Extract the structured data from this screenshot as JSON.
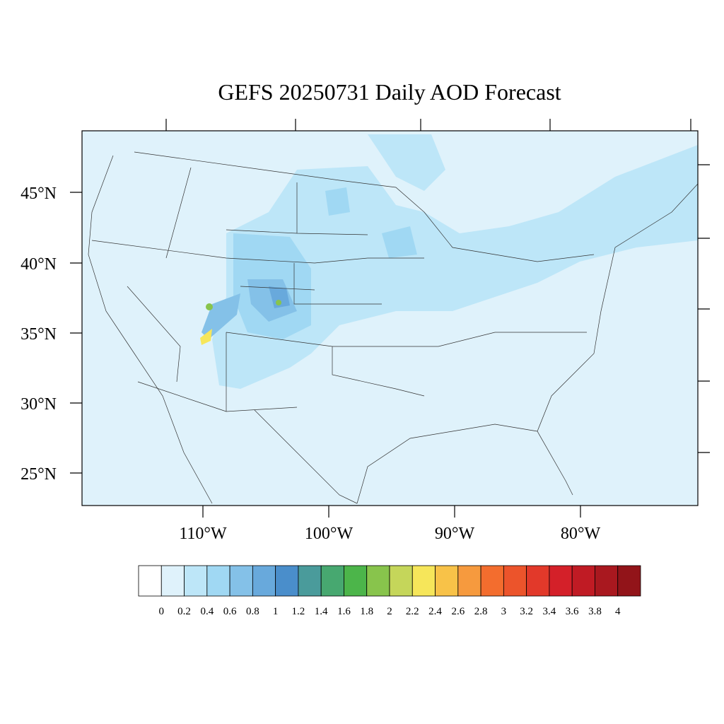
{
  "title": "GEFS 20250731 Daily AOD Forecast",
  "lat_labels": [
    "45°N",
    "40°N",
    "35°N",
    "30°N",
    "25°N"
  ],
  "lon_labels": [
    "110°W",
    "100°W",
    "90°W",
    "80°W"
  ],
  "colorbar": {
    "colors": [
      "#ffffff",
      "#dff2fb",
      "#bde6f8",
      "#a0d8f3",
      "#84c1e8",
      "#68a9dc",
      "#4a8ecb",
      "#4a9b9b",
      "#47a870",
      "#4cb54a",
      "#88c44c",
      "#c5d65a",
      "#f6e65a",
      "#f8c248",
      "#f69a3e",
      "#f36d2e",
      "#ec542b",
      "#e2392a",
      "#d42029",
      "#c01b24",
      "#a9181f",
      "#921419"
    ],
    "labels": [
      "0",
      "0.2",
      "0.4",
      "0.6",
      "0.8",
      "1",
      "1.2",
      "1.4",
      "1.6",
      "1.8",
      "2",
      "2.2",
      "2.4",
      "2.6",
      "2.8",
      "3",
      "3.2",
      "3.4",
      "3.6",
      "3.8",
      "4"
    ]
  }
}
